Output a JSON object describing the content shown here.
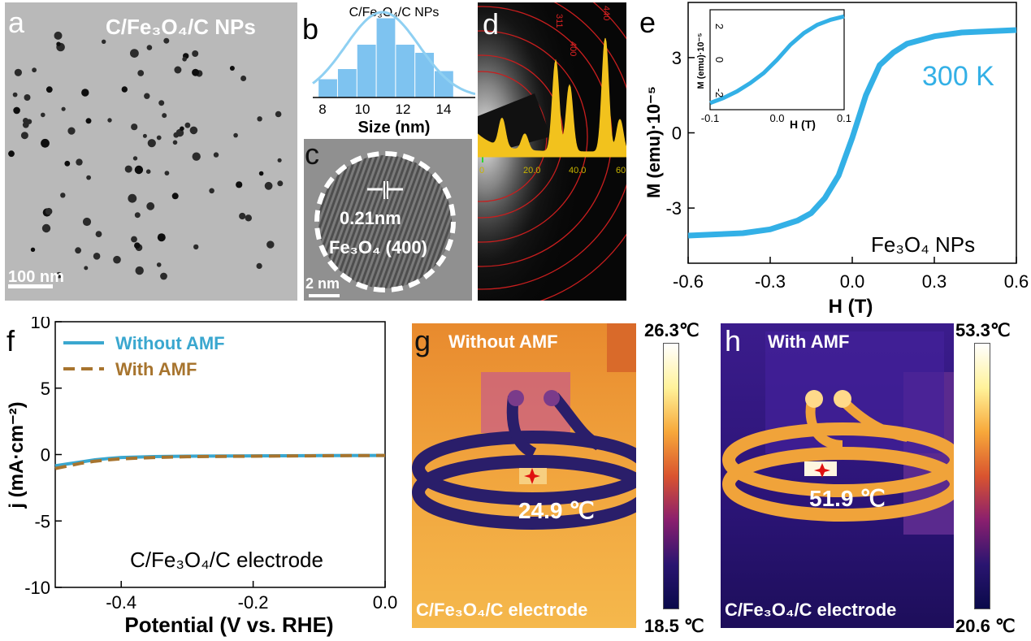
{
  "panel_a": {
    "label": "a",
    "title": "C/Fe₃O₄/C NPs",
    "scale_bar": "100 nm"
  },
  "panel_b": {
    "label": "b",
    "title": "C/Fe₃O₄/C NPs",
    "xlabel": "Size (nm)",
    "xticks": [
      "8",
      "10",
      "12",
      "14"
    ],
    "bar_color": "#7ec3f0",
    "fit_color": "#8fd0f2"
  },
  "panel_c": {
    "label": "c",
    "spacing": "0.21nm",
    "plane": "Fe₃O₄ (400)",
    "scale_bar": "2 nm"
  },
  "panel_d": {
    "label": "d",
    "peak_labels": [
      "311",
      "400",
      "440"
    ],
    "xticks": [
      "0",
      "20.0",
      "40.0",
      "60"
    ],
    "profile_color": "#f2c21d",
    "ring_color": "#c81e1e"
  },
  "panel_e": {
    "label": "e",
    "xlabel": "H (T)",
    "ylabel": "M (emu)·10⁻⁵",
    "annotation": "300 K",
    "sample": "Fe₃O₄ NPs",
    "xticks": [
      "-0.6",
      "-0.3",
      "0.0",
      "0.3",
      "0.6"
    ],
    "yticks": [
      "-3",
      "0",
      "3"
    ],
    "inset": {
      "xlabel": "H (T)",
      "ylabel": "M (emu)·10⁻⁵",
      "xticks": [
        "-0.1",
        "0.0",
        "0.1"
      ],
      "yticks": [
        "-2",
        "0",
        "2"
      ]
    },
    "curve_color": "#33b0e6"
  },
  "panel_f": {
    "label": "f",
    "xlabel": "Potential (V vs. RHE)",
    "ylabel": "j (mA·cm⁻²)",
    "annotation": "C/Fe₃O₄/C electrode",
    "xticks": [
      "-0.4",
      "-0.2",
      "0.0"
    ],
    "yticks": [
      "10",
      "5",
      "0",
      "-5",
      "-10"
    ],
    "legend": [
      {
        "label": "Without AMF",
        "color": "#3aa7cf",
        "dash": false
      },
      {
        "label": "With AMF",
        "color": "#a7742e",
        "dash": true
      }
    ]
  },
  "panel_g": {
    "label": "g",
    "title": "Without AMF",
    "temperature": "24.9 ℃",
    "sample": "C/Fe₃O₄/C electrode",
    "scale_max": "26.3℃",
    "scale_min": "18.5 ℃"
  },
  "panel_h": {
    "label": "h",
    "title": "With AMF",
    "temperature": "51.9 ℃",
    "sample": "C/Fe₃O₄/C electrode",
    "scale_max": "53.3℃",
    "scale_min": "20.6 ℃"
  },
  "chart_data": [
    {
      "panel": "b",
      "type": "bar",
      "title": "C/Fe₃O₄/C NPs",
      "xlabel": "Size (nm)",
      "ylabel": "",
      "categories": [
        "7.5-8.5",
        "8.5-9.5",
        "9.5-10.5",
        "10.5-11.5",
        "11.5-12.5",
        "12.5-13.5",
        "13.5-14.5"
      ],
      "values": [
        0.09,
        0.14,
        0.26,
        0.39,
        0.26,
        0.22,
        0.13
      ],
      "fit": "gaussian",
      "xlim": [
        7.2,
        15.6
      ],
      "grid": false
    },
    {
      "panel": "e",
      "type": "line",
      "title": "",
      "xlabel": "H (T)",
      "ylabel": "M (emu)·10⁻⁵",
      "series": [
        {
          "name": "",
          "x": [
            -0.6,
            -0.5,
            -0.4,
            -0.3,
            -0.2,
            -0.15,
            -0.1,
            -0.05,
            0.0,
            0.05,
            0.1,
            0.15,
            0.2,
            0.3,
            0.4,
            0.5,
            0.6
          ],
          "y": [
            -4.1,
            -4.05,
            -4.0,
            -3.85,
            -3.5,
            -3.2,
            -2.6,
            -1.7,
            -0.2,
            1.5,
            2.7,
            3.2,
            3.55,
            3.85,
            4.0,
            4.05,
            4.1
          ]
        }
      ],
      "xlim": [
        -0.6,
        0.6
      ],
      "ylim": [
        -5.2,
        5.2
      ],
      "grid": false
    },
    {
      "panel": "e-inset",
      "type": "line",
      "title": "",
      "xlabel": "H (T)",
      "ylabel": "M (emu)·10⁻⁵",
      "series": [
        {
          "name": "",
          "x": [
            -0.1,
            -0.08,
            -0.06,
            -0.04,
            -0.02,
            0.0,
            0.02,
            0.04,
            0.06,
            0.08,
            0.1
          ],
          "y": [
            -2.6,
            -2.3,
            -1.9,
            -1.4,
            -0.8,
            0.0,
            0.9,
            1.6,
            2.1,
            2.4,
            2.6
          ]
        }
      ],
      "xlim": [
        -0.1,
        0.1
      ],
      "ylim": [
        -3,
        3
      ],
      "grid": false
    },
    {
      "panel": "f",
      "type": "line",
      "title": "",
      "xlabel": "Potential (V vs. RHE)",
      "ylabel": "j (mA·cm⁻²)",
      "series": [
        {
          "name": "Without AMF",
          "x": [
            -0.5,
            -0.48,
            -0.46,
            -0.44,
            -0.42,
            -0.4,
            -0.35,
            -0.3,
            -0.2,
            -0.1,
            0.0
          ],
          "y": [
            -0.85,
            -0.7,
            -0.55,
            -0.4,
            -0.3,
            -0.22,
            -0.15,
            -0.12,
            -0.1,
            -0.08,
            -0.07
          ]
        },
        {
          "name": "With AMF",
          "x": [
            -0.5,
            -0.48,
            -0.46,
            -0.44,
            -0.42,
            -0.4,
            -0.35,
            -0.3,
            -0.2,
            -0.1,
            0.0
          ],
          "y": [
            -1.05,
            -0.85,
            -0.65,
            -0.5,
            -0.4,
            -0.32,
            -0.22,
            -0.16,
            -0.12,
            -0.09,
            -0.07
          ]
        }
      ],
      "xlim": [
        -0.5,
        0.0
      ],
      "ylim": [
        -10,
        10
      ],
      "grid": false
    }
  ]
}
